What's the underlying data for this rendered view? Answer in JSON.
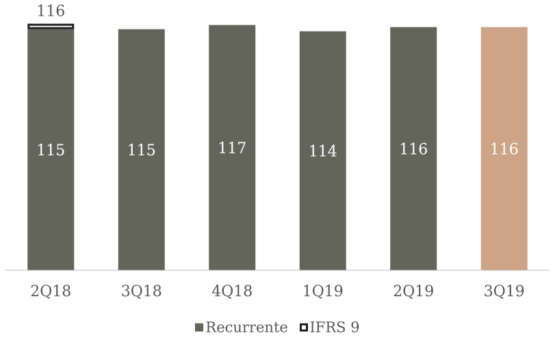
{
  "chart_data": {
    "type": "bar",
    "categories": [
      "2Q18",
      "3Q18",
      "4Q18",
      "1Q19",
      "2Q19",
      "3Q19"
    ],
    "series": [
      {
        "name": "Recurrente",
        "values": [
          115,
          115,
          117,
          114,
          116,
          116
        ]
      },
      {
        "name": "IFRS 9",
        "values": [
          1,
          null,
          null,
          null,
          null,
          null
        ]
      }
    ],
    "data_labels": [
      "115",
      "115",
      "117",
      "114",
      "116",
      "116"
    ],
    "total_labels": [
      "116",
      null,
      null,
      null,
      null,
      null
    ],
    "title": "",
    "xlabel": "",
    "ylabel": "",
    "ylim": [
      0,
      117.5
    ],
    "grid": false,
    "legend": "bottom",
    "colors": {
      "recurrente": "#63655a",
      "highlight": "#cda487",
      "ifrs_outline": "#1f1f1f",
      "axis": "#bfbfbf",
      "tick_text": "#595959",
      "label_text": "#ffffff",
      "total_text": "#595959"
    },
    "highlight_category": "3Q19"
  }
}
